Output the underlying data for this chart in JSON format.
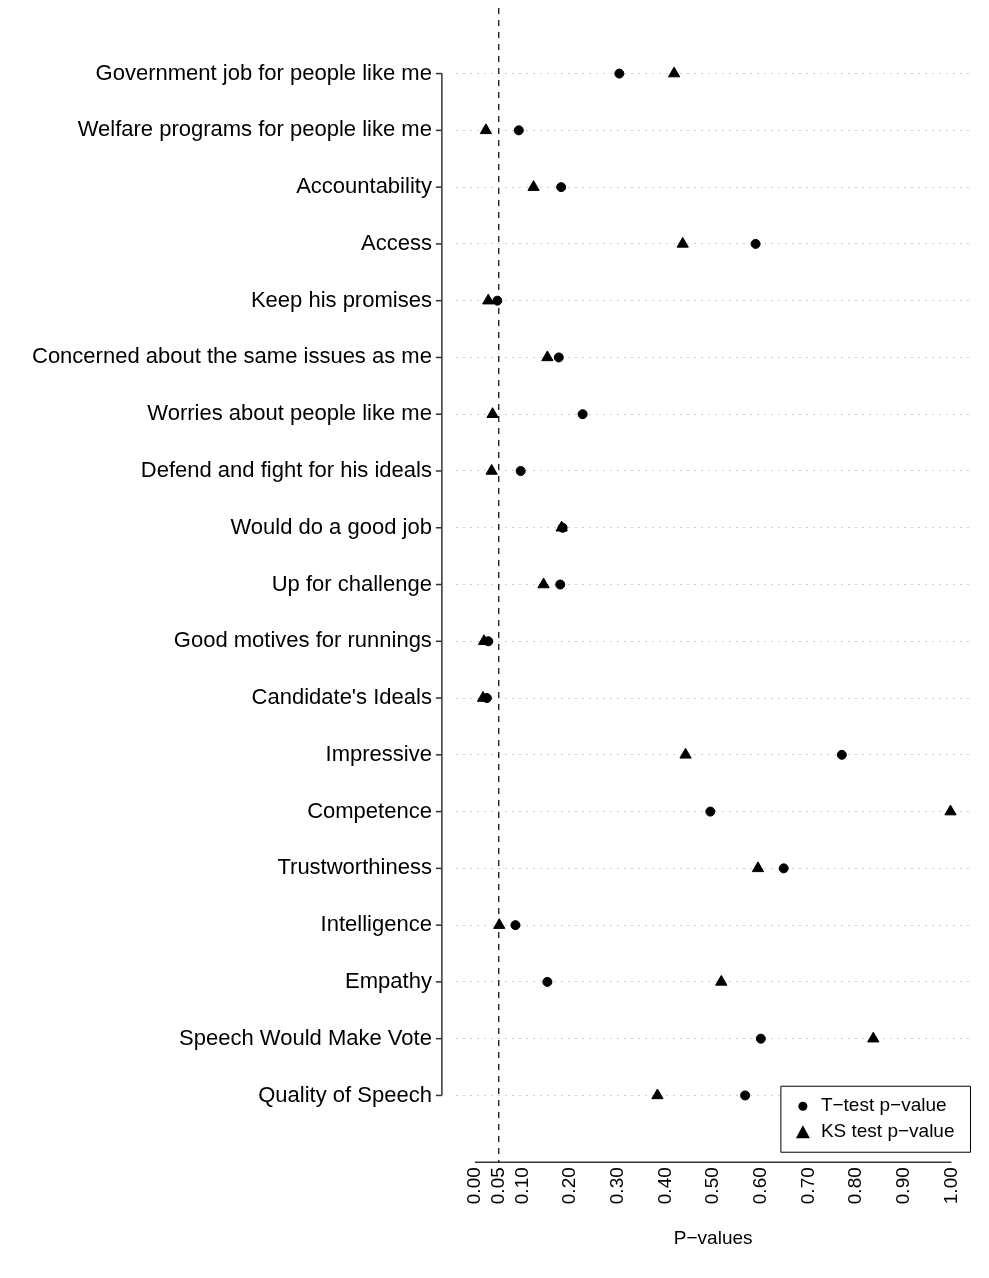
{
  "chart_data": {
    "type": "scatter",
    "orientation": "horizontal",
    "xlabel": "P−values",
    "categories": [
      "Government job for people like me",
      "Welfare programs for people like me",
      "Accountability",
      "Access",
      "Keep his promises",
      "Concerned about the same issues as me",
      "Worries about people like me",
      "Defend and fight for his ideals",
      "Would do a good job",
      "Up for challenge",
      "Good motives for runnings",
      "Candidate's Ideals",
      "Impressive",
      "Competence",
      "Trustworthiness",
      "Intelligence",
      "Empathy",
      "Speech Would Make Vote",
      "Quality of Speech"
    ],
    "series": [
      {
        "name": "T−test p−value",
        "color": "#000000",
        "marker": "circle",
        "values": [
          0.303,
          0.092,
          0.181,
          0.589,
          0.047,
          0.176,
          0.226,
          0.096,
          0.184,
          0.179,
          0.028,
          0.025,
          0.77,
          0.494,
          0.648,
          0.085,
          0.152,
          0.6,
          0.567
        ]
      },
      {
        "name": "KS test p−value",
        "color": "#000000",
        "marker": "triangle",
        "values": [
          0.418,
          0.023,
          0.123,
          0.436,
          0.028,
          0.152,
          0.037,
          0.035,
          0.182,
          0.144,
          0.019,
          0.017,
          0.442,
          0.998,
          0.594,
          0.051,
          0.517,
          0.836,
          0.383
        ]
      }
    ],
    "xlim": [
      -0.04,
      1.04
    ],
    "xticks": [
      {
        "value": 0,
        "label": "0.00"
      },
      {
        "value": 0.05,
        "label": "0.05"
      },
      {
        "value": 0.1,
        "label": "0.10"
      },
      {
        "value": 0.2,
        "label": "0.20"
      },
      {
        "value": 0.3,
        "label": "0.30"
      },
      {
        "value": 0.4,
        "label": "0.40"
      },
      {
        "value": 0.5,
        "label": "0.50"
      },
      {
        "value": 0.6,
        "label": "0.60"
      },
      {
        "value": 0.7,
        "label": "0.70"
      },
      {
        "value": 0.8,
        "label": "0.80"
      },
      {
        "value": 0.9,
        "label": "0.90"
      },
      {
        "value": 1,
        "label": "1.00"
      }
    ],
    "ref_lines": [
      {
        "axis": "x",
        "value": 0.05,
        "line_style": "dashed",
        "color": "#000000"
      }
    ],
    "grid": "y",
    "legend": "bottom right"
  }
}
